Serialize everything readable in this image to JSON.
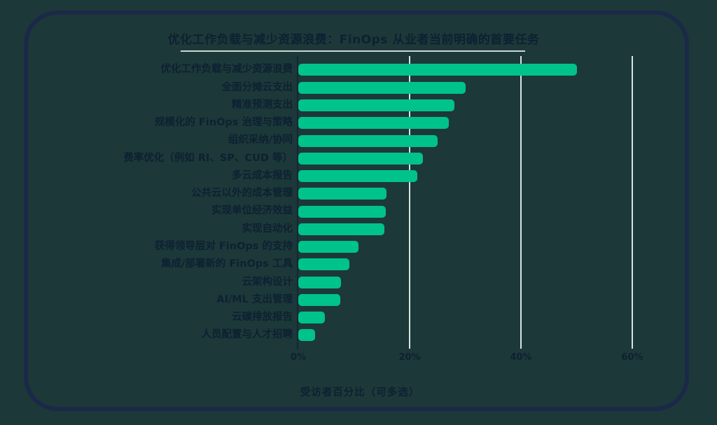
{
  "colors": {
    "background": "#1d3838",
    "frame_border": "#1b2949",
    "bar": "#00c28b",
    "text": "#0c2133",
    "gridline": "#d9e4e2",
    "axis_line": "#12273b",
    "title_underline": "#c8d6d4"
  },
  "chart_data": {
    "type": "bar",
    "orientation": "horizontal",
    "title": "优化工作负载与减少资源浪费：FinOps 从业者当前明确的首要任务",
    "xlabel": "受访者百分比（可多选）",
    "categories": [
      "优化工作负载与减少资源浪费",
      "全面分摊云支出",
      "精准预测支出",
      "规模化的 FinOps 治理与策略",
      "组织采纳/协同",
      "费率优化（例如 RI、SP、CUD 等）",
      "多云成本报告",
      "公共云以外的成本管理",
      "实现单位经济效益",
      "实现自动化",
      "获得领导层对 FinOps 的支持",
      "集成/部署新的 FinOps 工具",
      "云架构设计",
      "AI/ML 支出管理",
      "云碳排放报告",
      "人员配置与人才招聘"
    ],
    "values": [
      50,
      30,
      28,
      27,
      25,
      22.4,
      21.4,
      15.9,
      15.7,
      15.5,
      10.8,
      9.2,
      7.7,
      7.5,
      4.8,
      3
    ],
    "value_unit": "%",
    "xlim": [
      0,
      67
    ],
    "x_tick_values": [
      0,
      20,
      40,
      60
    ],
    "x_tick_labels": [
      "0%",
      "20%",
      "40%",
      "60%"
    ],
    "grid": "vertical gridlines at 20/40/60",
    "legend": "none",
    "bar_color": "#00c28b"
  }
}
